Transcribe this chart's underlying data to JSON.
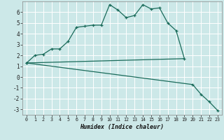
{
  "xlabel": "Humidex (Indice chaleur)",
  "bg_color": "#cce8e8",
  "grid_color": "#ffffff",
  "line_color": "#1a6b5a",
  "series1_x": [
    0,
    1,
    2,
    3,
    4,
    5,
    6,
    7,
    8,
    9,
    10,
    11,
    12,
    13,
    14,
    15,
    16,
    17,
    18,
    19
  ],
  "series1_y": [
    1.3,
    2.0,
    2.1,
    2.6,
    2.6,
    3.3,
    4.6,
    4.7,
    4.8,
    4.8,
    6.7,
    6.2,
    5.5,
    5.7,
    6.7,
    6.3,
    6.4,
    5.0,
    4.3,
    1.7
  ],
  "series2_x": [
    0,
    19
  ],
  "series2_y": [
    1.3,
    1.7
  ],
  "series3_x": [
    0,
    20,
    21,
    22,
    23
  ],
  "series3_y": [
    1.3,
    -0.7,
    -1.6,
    -2.3,
    -3.1
  ],
  "ylim": [
    -3.5,
    7.0
  ],
  "xlim": [
    -0.5,
    23.5
  ],
  "yticks": [
    -3,
    -2,
    -1,
    0,
    1,
    2,
    3,
    4,
    5,
    6
  ],
  "xticks": [
    0,
    1,
    2,
    3,
    4,
    5,
    6,
    7,
    8,
    9,
    10,
    11,
    12,
    13,
    14,
    15,
    16,
    17,
    18,
    19,
    20,
    21,
    22,
    23
  ]
}
